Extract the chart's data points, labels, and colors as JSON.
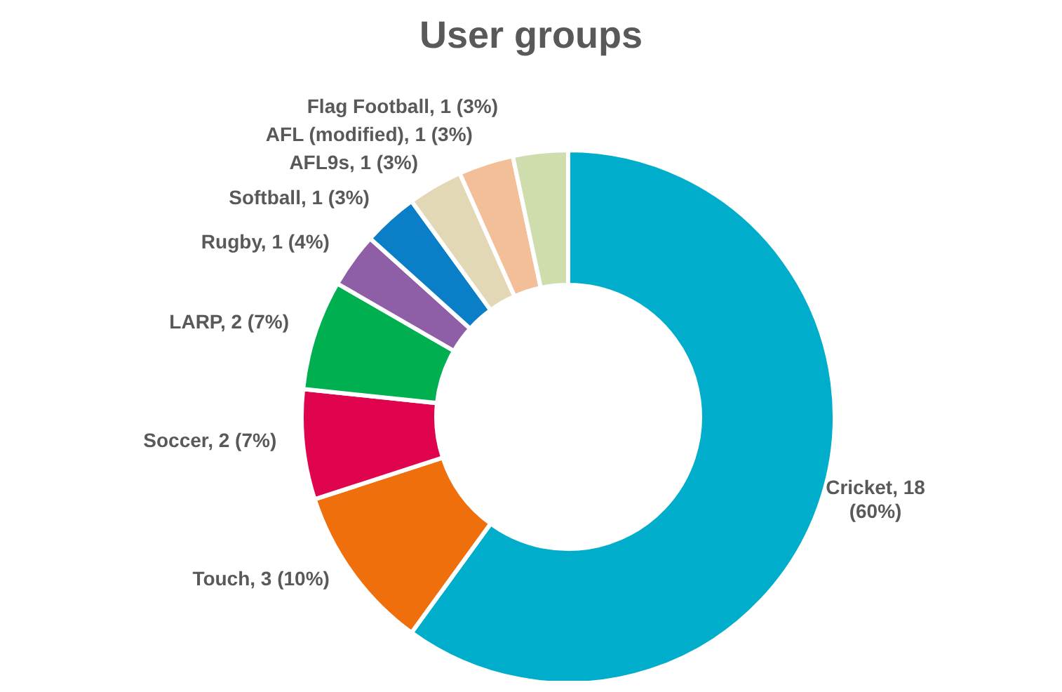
{
  "chart_data": {
    "type": "donut",
    "title": "User groups",
    "categories": [
      "Cricket",
      "Touch",
      "Soccer",
      "LARP",
      "Rugby",
      "Softball",
      "AFL9s",
      "AFL (modified)",
      "Flag Football"
    ],
    "values": [
      18,
      3,
      2,
      2,
      1,
      1,
      1,
      1,
      1
    ],
    "value_labels": [
      "18 (60%)",
      "3 (10%)",
      "2 (7%)",
      "2 (7%)",
      "1 (4%)",
      "1 (3%)",
      "1 (3%)",
      "1 (3%)",
      "1 (3%)"
    ],
    "colors": [
      "#00aecb",
      "#ee6f0b",
      "#e0044e",
      "#00b050",
      "#8e5ea6",
      "#0a7ec6",
      "#e2d8b6",
      "#f2bf99",
      "#cfdcac"
    ]
  }
}
